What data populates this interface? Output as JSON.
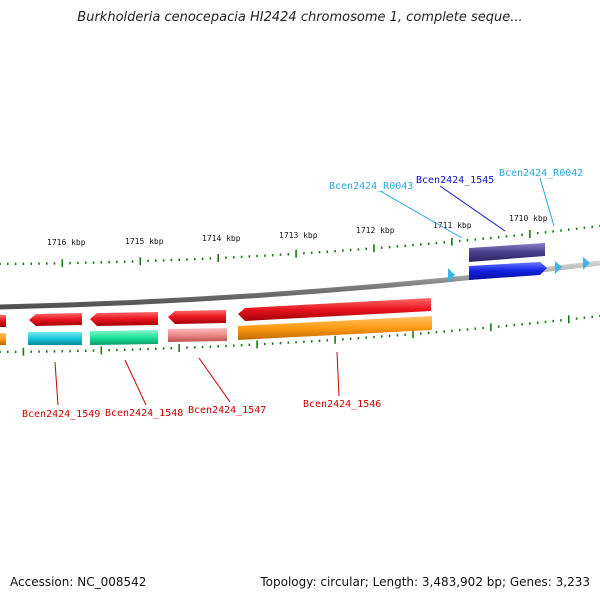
{
  "title": "Burkholderia cenocepacia HI2424 chromosome 1, complete seque...",
  "footer": {
    "accession": "Accession: NC_008542",
    "summary": "Topology: circular; Length: 3,483,902 bp; Genes: 3,233"
  },
  "ticks": [
    "1716 kbp",
    "1715 kbp",
    "1714 kbp",
    "1713 kbp",
    "1712 kbp",
    "1711 kbp",
    "1710 kbp"
  ],
  "feature_labels": {
    "rna_left": "Bcen2424_R0043",
    "rna_right": "Bcen2424_R0042",
    "gene_1545": "Bcen2424_1545",
    "gene_1546": "Bcen2424_1546",
    "gene_1547": "Bcen2424_1547",
    "gene_1548": "Bcen2424_1548",
    "gene_1549": "Bcen2424_1549"
  },
  "colors": {
    "gene_red": "#e8141e",
    "cds_orange": "#ff9a12",
    "cds_cyan": "#18c6d6",
    "cds_green": "#1de29a",
    "cds_pink": "#ef8a8a",
    "gene_navy": "#4a3f8c",
    "cds_blue": "#1020e0",
    "rna_lightblue": "#3fb6e8",
    "tick_green": "#1a7a1a",
    "backbone_gray": "#808080",
    "label_red": "#cc0000",
    "label_blue": "#0a12c8",
    "label_lightblue": "#2aa6d8"
  }
}
